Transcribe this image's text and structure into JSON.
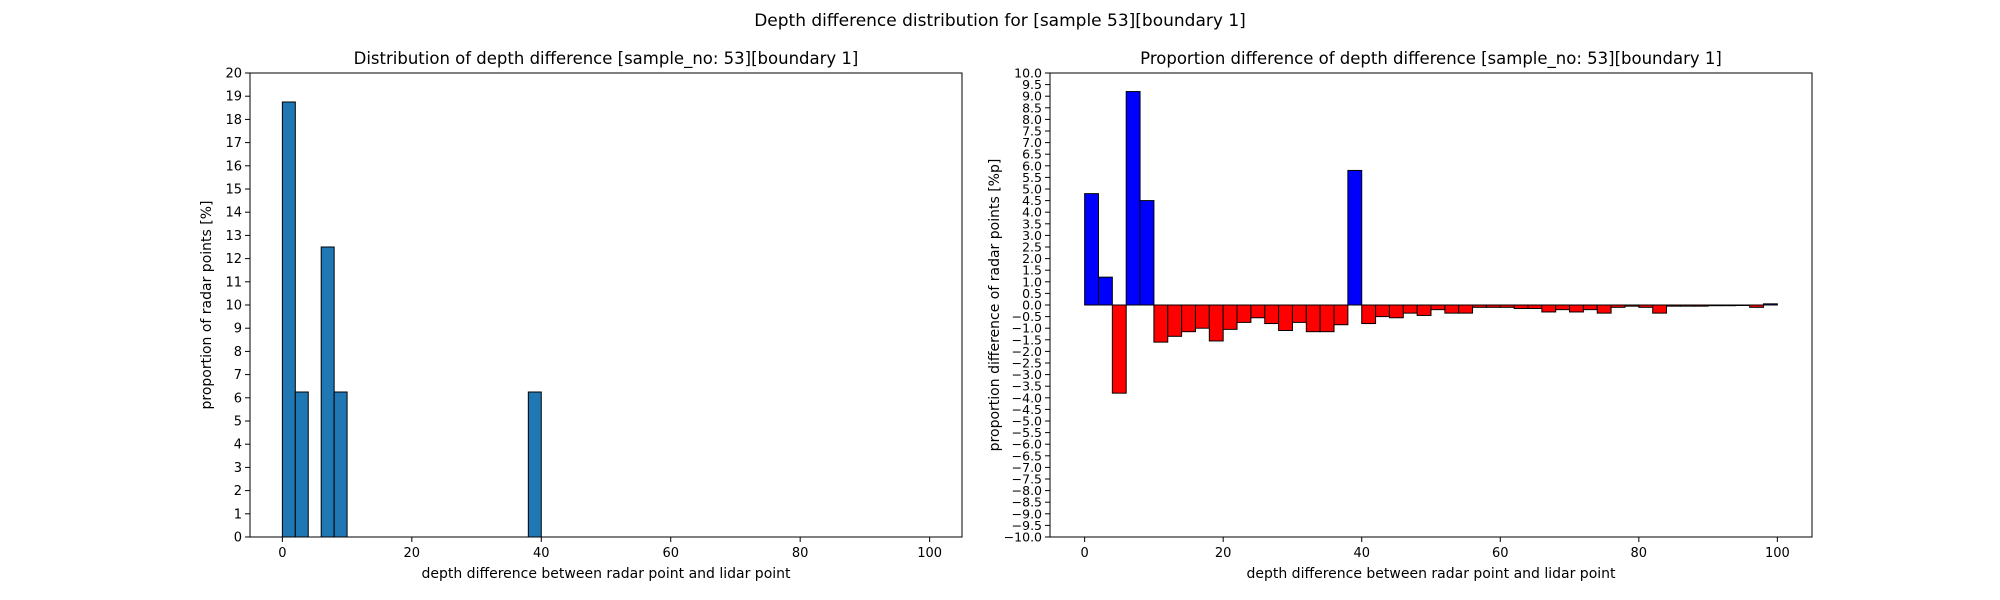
{
  "figure": {
    "suptitle": "Depth difference distribution for [sample 53][boundary 1]"
  },
  "chart_data": [
    {
      "type": "bar",
      "title": "Distribution of depth difference [sample_no: 53][boundary 1]",
      "xlabel": "depth difference between radar point and lidar point",
      "ylabel": "proportion of radar points [%]",
      "xlim": [
        -5,
        105
      ],
      "ylim": [
        0,
        20
      ],
      "xticks": [
        0,
        20,
        40,
        60,
        80,
        100
      ],
      "yticks": [
        0,
        1,
        2,
        3,
        4,
        5,
        6,
        7,
        8,
        9,
        10,
        11,
        12,
        13,
        14,
        15,
        16,
        17,
        18,
        19,
        20
      ],
      "bin_width": 2,
      "bar_color": "#1f77b4",
      "edge_color": "#000000",
      "bins": [
        0,
        2,
        4,
        6,
        8,
        10,
        12,
        14,
        16,
        18,
        20,
        22,
        24,
        26,
        28,
        30,
        32,
        34,
        36,
        38,
        40,
        42,
        44,
        46,
        48,
        50,
        52,
        54,
        56,
        58,
        60,
        62,
        64,
        66,
        68,
        70,
        72,
        74,
        76,
        78,
        80,
        82,
        84,
        86,
        88,
        90,
        92,
        94,
        96,
        98
      ],
      "values": [
        18.75,
        6.25,
        0,
        12.5,
        6.25,
        0,
        0,
        0,
        0,
        0,
        0,
        0,
        0,
        0,
        0,
        0,
        0,
        0,
        0,
        6.25,
        0,
        0,
        0,
        0,
        0,
        0,
        0,
        0,
        0,
        0,
        0,
        0,
        0,
        0,
        0,
        0,
        0,
        0,
        0,
        0,
        0,
        0,
        0,
        0,
        0,
        0,
        0,
        0,
        0,
        0
      ],
      "grid": false,
      "legend": null
    },
    {
      "type": "bar",
      "title": "Proportion difference of depth difference [sample_no: 53][boundary 1]",
      "xlabel": "depth difference between radar point and lidar point",
      "ylabel": "proportion difference of radar points [%p]",
      "xlim": [
        -5,
        105
      ],
      "ylim": [
        -10,
        10
      ],
      "xticks": [
        0,
        20,
        40,
        60,
        80,
        100
      ],
      "yticks": [
        -10,
        -9.5,
        -9,
        -8.5,
        -8,
        -7.5,
        -7,
        -6.5,
        -6,
        -5.5,
        -5,
        -4.5,
        -4,
        -3.5,
        -3,
        -2.5,
        -2,
        -1.5,
        -1,
        -0.5,
        0,
        0.5,
        1,
        1.5,
        2,
        2.5,
        3,
        3.5,
        4,
        4.5,
        5,
        5.5,
        6,
        6.5,
        7,
        7.5,
        8,
        8.5,
        9,
        9.5,
        10
      ],
      "bin_width": 2,
      "positive_color": "#0000ff",
      "negative_color": "#ff0000",
      "edge_color": "#000000",
      "bins": [
        0,
        2,
        4,
        6,
        8,
        10,
        12,
        14,
        16,
        18,
        20,
        22,
        24,
        26,
        28,
        30,
        32,
        34,
        36,
        38,
        40,
        42,
        44,
        46,
        48,
        50,
        52,
        54,
        56,
        58,
        60,
        62,
        64,
        66,
        68,
        70,
        72,
        74,
        76,
        78,
        80,
        82,
        84,
        86,
        88,
        90,
        92,
        94,
        96,
        98
      ],
      "values": [
        4.8,
        1.2,
        -3.8,
        9.2,
        4.5,
        -1.6,
        -1.35,
        -1.15,
        -1.0,
        -1.55,
        -1.05,
        -0.75,
        -0.55,
        -0.8,
        -1.1,
        -0.75,
        -1.15,
        -1.15,
        -0.85,
        5.8,
        -0.8,
        -0.5,
        -0.55,
        -0.35,
        -0.45,
        -0.2,
        -0.35,
        -0.35,
        -0.1,
        -0.1,
        -0.1,
        -0.15,
        -0.15,
        -0.3,
        -0.2,
        -0.3,
        -0.2,
        -0.35,
        -0.1,
        -0.05,
        -0.1,
        -0.35,
        -0.05,
        -0.05,
        -0.05,
        -0.03,
        -0.03,
        -0.02,
        -0.1,
        0.05
      ],
      "grid": false,
      "legend": null
    }
  ]
}
